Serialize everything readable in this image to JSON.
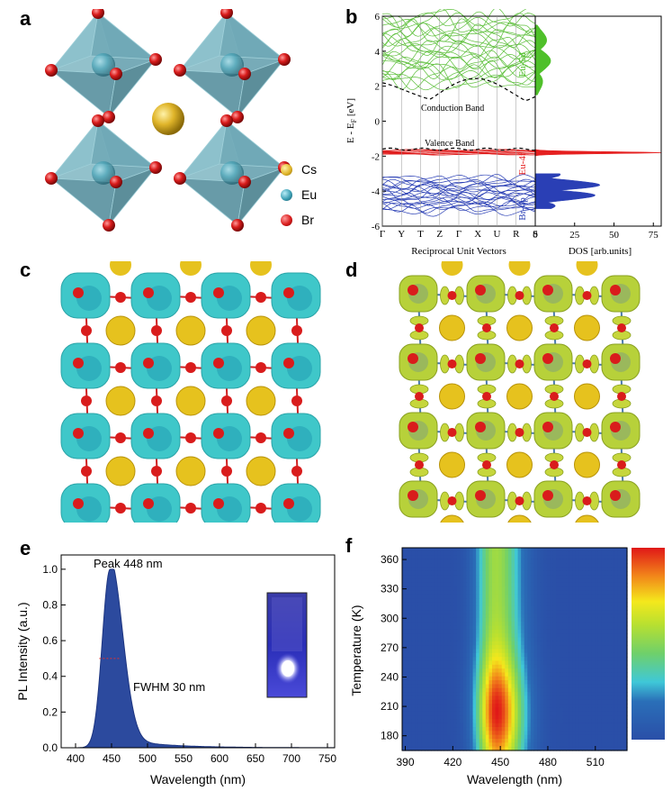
{
  "panel_labels": {
    "a": "a",
    "b": "b",
    "c": "c",
    "d": "d",
    "e": "e",
    "f": "f"
  },
  "legend_a": [
    {
      "label": "Cs",
      "color": "#e0b52a"
    },
    {
      "label": "Eu",
      "color": "#3c9fb4"
    },
    {
      "label": "Br",
      "color": "#d91c1c"
    }
  ],
  "colors": {
    "cs": "#e6c21e",
    "eu": "#2f9fbf",
    "br": "#d91c1c",
    "octa": "#6aa6b4",
    "iso_c": "#3fc7c9",
    "iso_d": "#b7d13a",
    "pl_fill": "#2c4a9e"
  },
  "chart_data": [
    {
      "type": "line",
      "name": "band-structure",
      "ylabel": "E - E",
      "ylabel_sub": "F",
      "ylabel_unit": " [eV]",
      "xlabel": "Reciprocal Unit Vectors",
      "xticks": [
        "Γ",
        "Y",
        "T",
        "Z",
        "Γ",
        "X",
        "U",
        "R",
        "S"
      ],
      "ylim": [
        -6,
        6
      ],
      "yticks": [
        -6,
        -4,
        -2,
        0,
        2,
        4,
        6
      ],
      "annotations": [
        "Conduction Band",
        "Valence Band"
      ]
    },
    {
      "type": "area",
      "name": "dos",
      "xlabel": "DOS [arb.units]",
      "xticks": [
        0,
        25,
        50,
        75
      ],
      "xlim": [
        0,
        80
      ],
      "series": [
        {
          "name": "Eu-5d",
          "color": "#4fc02a",
          "energy_range": [
            1.5,
            5.5
          ],
          "peak": 10
        },
        {
          "name": "Eu-4f",
          "color": "#e52020",
          "energy_range": [
            -2.0,
            -1.6
          ],
          "peak": 80
        },
        {
          "name": "Br-4p",
          "color": "#2a3fb5",
          "energy_range": [
            -5.0,
            -3.0
          ],
          "peak": 45
        }
      ]
    },
    {
      "type": "area",
      "name": "photoluminescence",
      "xlabel": "Wavelength (nm)",
      "ylabel": "PL Intensity (a.u.)",
      "xticks": [
        400,
        450,
        500,
        550,
        600,
        650,
        700,
        750
      ],
      "yticks": [
        "0.0",
        "0.2",
        "0.4",
        "0.6",
        "0.8",
        "1.0"
      ],
      "xlim": [
        380,
        760
      ],
      "ylim": [
        0,
        1.08
      ],
      "peak_nm": 448,
      "fwhm_nm": 30,
      "annotations": [
        "Peak 448 nm",
        "FWHM 30 nm"
      ]
    },
    {
      "type": "heatmap",
      "name": "temperature-pl-map",
      "xlabel": "Wavelength (nm)",
      "ylabel": "Temperature (K)",
      "xticks": [
        390,
        420,
        450,
        480,
        510
      ],
      "yticks": [
        180,
        210,
        240,
        270,
        300,
        330,
        360
      ],
      "xlim": [
        388,
        530
      ],
      "ylim": [
        165,
        372
      ],
      "center_nm": 448
    }
  ]
}
